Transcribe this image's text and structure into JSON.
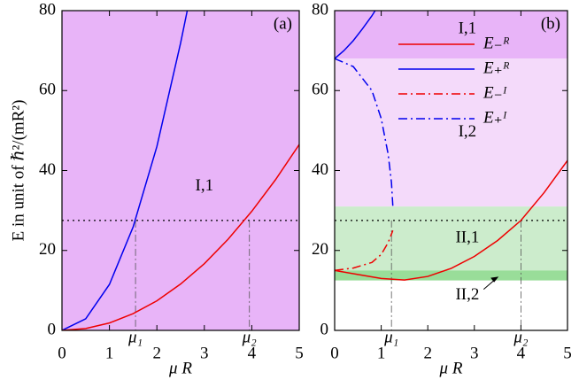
{
  "chart_data": [
    {
      "type": "line",
      "panel_label": "(a)",
      "y_label": "E   in unit of ℏ²/(mR²)",
      "x_label": "μ R",
      "xlim": [
        0,
        5
      ],
      "ylim": [
        0,
        80
      ],
      "xticks": [
        0,
        1,
        2,
        3,
        4,
        5
      ],
      "yticks": [
        0,
        20,
        40,
        60,
        80
      ],
      "regions": [
        {
          "label": "I,1",
          "ylim": [
            0,
            80
          ],
          "color": "#e8b4f8"
        }
      ],
      "hline": 27.5,
      "markers": [
        {
          "label": "μ₁",
          "x": 1.55
        },
        {
          "label": "μ₂",
          "x": 3.95
        }
      ],
      "series": [
        {
          "color": "#0000ee",
          "style": "solid",
          "x": [
            0,
            0.5,
            1,
            1.5,
            2,
            2.5,
            2.64
          ],
          "values": [
            0,
            2.9,
            11.5,
            25.9,
            46,
            71.9,
            80
          ]
        },
        {
          "color": "#ee0000",
          "style": "solid",
          "x": [
            0,
            0.5,
            1,
            1.5,
            2,
            2.5,
            3,
            3.5,
            4,
            4.5,
            5
          ],
          "values": [
            0,
            0.47,
            1.86,
            4.2,
            7.4,
            11.6,
            16.7,
            22.8,
            29.8,
            37.7,
            46.5
          ]
        }
      ]
    },
    {
      "type": "line",
      "panel_label": "(b)",
      "x_label": "μ R",
      "xlim": [
        0,
        5
      ],
      "ylim": [
        0,
        80
      ],
      "xticks": [
        0,
        1,
        2,
        3,
        4,
        5
      ],
      "yticks": [
        0,
        20,
        40,
        60,
        80
      ],
      "regions": [
        {
          "label": "I,1",
          "ylim": [
            68,
            80
          ],
          "color": "#e8b4f8"
        },
        {
          "label": "I,2",
          "ylim": [
            31,
            68
          ],
          "color": "#f4dafa"
        },
        {
          "label": "II,1",
          "ylim": [
            15,
            31
          ],
          "color": "#cceccc"
        },
        {
          "label": "II,2",
          "ylim": [
            12.5,
            15
          ],
          "color": "#99dd99"
        }
      ],
      "hline": 27.5,
      "markers": [
        {
          "label": "μ₁",
          "x": 1.22
        },
        {
          "label": "μ₂",
          "x": 4.0
        }
      ],
      "series": [
        {
          "name": "E₋ᴿ",
          "color": "#ee0000",
          "style": "solid",
          "x": [
            0,
            0.5,
            1,
            1.5,
            2,
            2.5,
            3,
            3.5,
            4,
            4.5,
            5
          ],
          "values": [
            15,
            14,
            13,
            12.6,
            13.5,
            15.5,
            18.5,
            22.5,
            27.5,
            34.5,
            42.5
          ]
        },
        {
          "name": "E₊ᴿ",
          "color": "#0000ee",
          "style": "solid",
          "x": [
            0,
            0.2,
            0.4,
            0.6,
            0.8,
            0.87
          ],
          "values": [
            68,
            70,
            72.5,
            75.5,
            78.7,
            80
          ]
        },
        {
          "name": "E₋ᴵ",
          "color": "#ee0000",
          "style": "dashdot",
          "x": [
            0,
            0.4,
            0.8,
            1,
            1.15,
            1.25
          ],
          "values": [
            15,
            15.6,
            17,
            19,
            22,
            25
          ]
        },
        {
          "name": "E₊ᴵ",
          "color": "#0000ee",
          "style": "dashdot",
          "x": [
            0,
            0.4,
            0.8,
            1,
            1.15,
            1.22,
            1.25
          ],
          "values": [
            68,
            66,
            60,
            53,
            44,
            37,
            31
          ]
        }
      ]
    }
  ]
}
